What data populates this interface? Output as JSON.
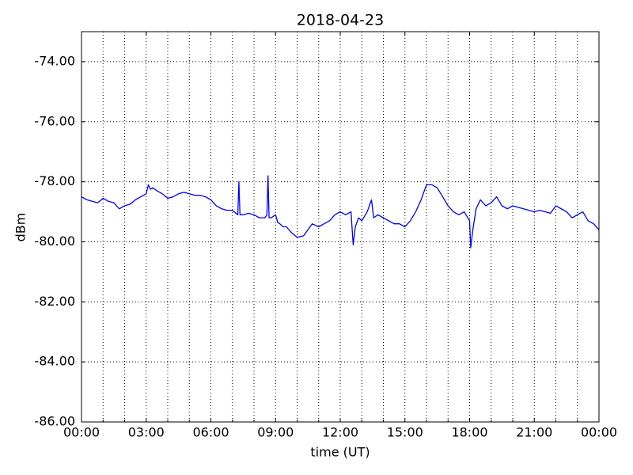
{
  "chart_data": {
    "type": "line",
    "title": "2018-04-23",
    "xlabel": "time (UT)",
    "ylabel": "dBm",
    "x": [
      0,
      0.25,
      0.5,
      0.75,
      1.0,
      1.25,
      1.5,
      1.75,
      2.0,
      2.25,
      2.5,
      2.75,
      3.0,
      3.1,
      3.2,
      3.3,
      3.5,
      3.75,
      4.0,
      4.25,
      4.5,
      4.75,
      5.0,
      5.25,
      5.5,
      5.75,
      6.0,
      6.25,
      6.5,
      6.75,
      7.0,
      7.25,
      7.3,
      7.35,
      7.5,
      7.75,
      8.0,
      8.25,
      8.5,
      8.6,
      8.65,
      8.7,
      8.8,
      9.0,
      9.1,
      9.2,
      9.35,
      9.5,
      9.75,
      10.0,
      10.3,
      10.5,
      10.7,
      11.0,
      11.25,
      11.5,
      11.75,
      12.0,
      12.25,
      12.5,
      12.6,
      12.7,
      12.85,
      13.0,
      13.25,
      13.45,
      13.55,
      13.75,
      14.0,
      14.25,
      14.5,
      14.75,
      15.0,
      15.25,
      15.5,
      15.75,
      16.0,
      16.25,
      16.5,
      16.75,
      17.0,
      17.25,
      17.5,
      17.75,
      18.0,
      18.05,
      18.15,
      18.3,
      18.5,
      18.75,
      19.0,
      19.25,
      19.5,
      19.75,
      20.0,
      20.25,
      20.5,
      20.75,
      21.0,
      21.25,
      21.5,
      21.75,
      22.0,
      22.25,
      22.5,
      22.75,
      23.0,
      23.25,
      23.5,
      23.75,
      24.0
    ],
    "series": [
      {
        "name": "dBm",
        "color": "#0000ff",
        "values": [
          -78.5,
          -78.6,
          -78.65,
          -78.7,
          -78.55,
          -78.65,
          -78.7,
          -78.9,
          -78.8,
          -78.75,
          -78.6,
          -78.5,
          -78.4,
          -78.1,
          -78.25,
          -78.2,
          -78.3,
          -78.4,
          -78.55,
          -78.5,
          -78.4,
          -78.35,
          -78.4,
          -78.45,
          -78.45,
          -78.5,
          -78.6,
          -78.8,
          -78.9,
          -78.95,
          -78.95,
          -79.1,
          -78.0,
          -79.1,
          -79.1,
          -79.05,
          -79.1,
          -79.2,
          -79.2,
          -79.1,
          -77.8,
          -79.2,
          -79.2,
          -79.1,
          -79.35,
          -79.4,
          -79.5,
          -79.5,
          -79.7,
          -79.85,
          -79.8,
          -79.6,
          -79.4,
          -79.5,
          -79.4,
          -79.3,
          -79.1,
          -79.0,
          -79.1,
          -79.0,
          -80.1,
          -79.5,
          -79.2,
          -79.3,
          -79.0,
          -78.6,
          -79.2,
          -79.1,
          -79.2,
          -79.3,
          -79.4,
          -79.4,
          -79.5,
          -79.3,
          -79.0,
          -78.6,
          -78.1,
          -78.1,
          -78.2,
          -78.5,
          -78.8,
          -79.0,
          -79.1,
          -79.0,
          -79.3,
          -80.2,
          -79.6,
          -78.9,
          -78.6,
          -78.8,
          -78.7,
          -78.5,
          -78.8,
          -78.9,
          -78.8,
          -78.85,
          -78.9,
          -78.95,
          -79.0,
          -78.95,
          -79.0,
          -79.05,
          -78.8,
          -78.9,
          -79.0,
          -79.2,
          -79.1,
          -79.0,
          -79.3,
          -79.4,
          -79.6
        ]
      }
    ],
    "xlim": [
      0,
      24
    ],
    "xticks": [
      {
        "value": 0,
        "label": "00:00"
      },
      {
        "value": 3,
        "label": "03:00"
      },
      {
        "value": 6,
        "label": "06:00"
      },
      {
        "value": 9,
        "label": "09:00"
      },
      {
        "value": 12,
        "label": "12:00"
      },
      {
        "value": 15,
        "label": "15:00"
      },
      {
        "value": 18,
        "label": "18:00"
      },
      {
        "value": 21,
        "label": "21:00"
      },
      {
        "value": 24,
        "label": "00:00"
      }
    ],
    "xminorticks": [
      1,
      2,
      4,
      5,
      7,
      8,
      10,
      11,
      13,
      14,
      16,
      17,
      19,
      20,
      22,
      23
    ],
    "ylim": [
      -86,
      -73
    ],
    "yticks": [
      {
        "value": -74,
        "label": "-74.00"
      },
      {
        "value": -76,
        "label": "-76.00"
      },
      {
        "value": -78,
        "label": "-78.00"
      },
      {
        "value": -80,
        "label": "-80.00"
      },
      {
        "value": -82,
        "label": "-82.00"
      },
      {
        "value": -84,
        "label": "-84.00"
      },
      {
        "value": -86,
        "label": "-86.00"
      }
    ],
    "grid": true
  }
}
